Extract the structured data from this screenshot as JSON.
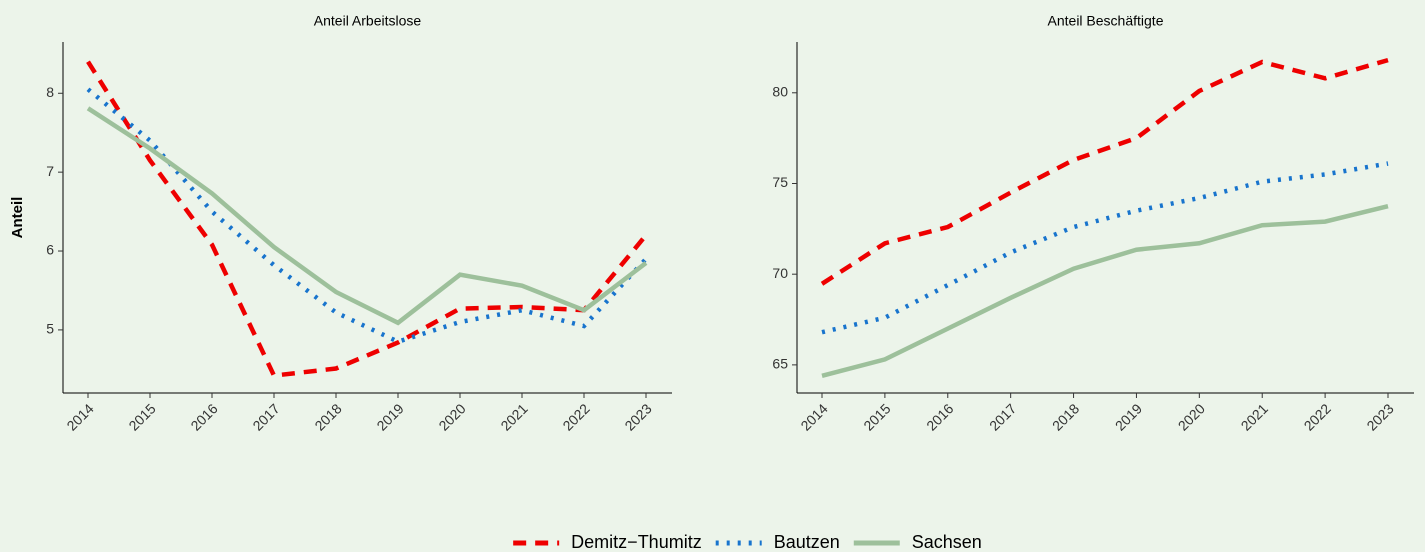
{
  "chart_data": [
    {
      "type": "line",
      "title": "Anteil Arbeitslose",
      "ylabel": "Anteil",
      "categories": [
        "2014",
        "2015",
        "2016",
        "2017",
        "2018",
        "2019",
        "2020",
        "2021",
        "2022",
        "2023"
      ],
      "ylim": [
        4.2,
        8.65
      ],
      "yticks": [
        5,
        6,
        7,
        8
      ],
      "legend": "bottom",
      "series": [
        {
          "name": "Demitz−Thumitz",
          "color": "#ee0000",
          "dash": "dashed",
          "values": [
            8.4,
            7.15,
            6.08,
            4.42,
            4.51,
            4.84,
            5.27,
            5.29,
            5.25,
            6.2
          ]
        },
        {
          "name": "Bautzen",
          "color": "#1874cd",
          "dash": "dotted",
          "values": [
            8.05,
            7.4,
            6.5,
            5.82,
            5.22,
            4.85,
            5.1,
            5.25,
            5.05,
            5.9
          ]
        },
        {
          "name": "Sachsen",
          "color": "#9dc09b",
          "dash": "solid",
          "values": [
            7.81,
            7.3,
            6.73,
            6.05,
            5.48,
            5.09,
            5.7,
            5.56,
            5.25,
            5.85
          ]
        }
      ]
    },
    {
      "type": "line",
      "title": "Anteil Beschäftigte",
      "categories": [
        "2014",
        "2015",
        "2016",
        "2017",
        "2018",
        "2019",
        "2020",
        "2021",
        "2022",
        "2023"
      ],
      "ylim": [
        63.45,
        82.8
      ],
      "yticks": [
        65,
        70,
        75,
        80
      ],
      "series": [
        {
          "color": "#ee0000",
          "dash": "dashed",
          "values": [
            69.47,
            71.7,
            72.6,
            74.5,
            76.3,
            77.5,
            80.1,
            81.7,
            80.8,
            81.8
          ]
        },
        {
          "color": "#1874cd",
          "dash": "dotted",
          "values": [
            66.8,
            67.6,
            69.4,
            71.2,
            72.6,
            73.5,
            74.2,
            75.1,
            75.5,
            76.1
          ]
        },
        {
          "color": "#9dc09b",
          "dash": "solid",
          "values": [
            64.4,
            65.3,
            67.0,
            68.7,
            70.3,
            71.35,
            71.7,
            72.7,
            72.9,
            73.75
          ]
        }
      ]
    }
  ]
}
